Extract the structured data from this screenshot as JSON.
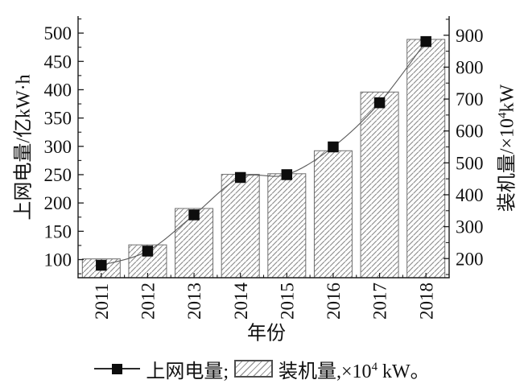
{
  "figure": {
    "background": "#ffffff",
    "text_color": "#111111",
    "axis_color": "#1a1a1a",
    "bar_fill": "#ffffff",
    "bar_hatch_color": "#8a8a8a",
    "bar_edge_color": "#6e6e6e",
    "line_color": "#5c5c5c",
    "marker_color": "#0d0d0d"
  },
  "chart_data": {
    "type": "combo-bar-line",
    "categories": [
      "2011",
      "2012",
      "2013",
      "2014",
      "2015",
      "2016",
      "2017",
      "2018"
    ],
    "series": [
      {
        "name": "上网电量",
        "type": "line",
        "axis": "left",
        "marker": "filled-square",
        "values": [
          90,
          115,
          179,
          245,
          250,
          299,
          377,
          485
        ]
      },
      {
        "name": "装机量",
        "type": "bar",
        "axis": "right",
        "fill": "diagonal-hatch",
        "values": [
          199,
          243,
          357,
          464,
          466,
          538,
          722,
          887
        ]
      }
    ],
    "x_axis": {
      "label": "年份",
      "tick_label_rotation_deg": -90
    },
    "left_axis": {
      "label": "上网电量/亿kW·h",
      "ticks": [
        100,
        150,
        200,
        250,
        300,
        350,
        400,
        450,
        500
      ],
      "minor_tick_step": 25,
      "range": [
        68,
        530
      ]
    },
    "right_axis": {
      "label_prefix": "装机量/×10",
      "label_sup": "4",
      "label_suffix": "kW",
      "ticks": [
        200,
        300,
        400,
        500,
        600,
        700,
        800,
        900
      ],
      "minor_tick_step": 50,
      "range": [
        140,
        960
      ]
    },
    "grid": false,
    "legend_position": "bottom-center"
  },
  "legend": {
    "line_item_label": "上网电量;",
    "bar_item_prefix": "装机量,×10",
    "bar_item_sup": "4",
    "bar_item_suffix": " kW。"
  }
}
